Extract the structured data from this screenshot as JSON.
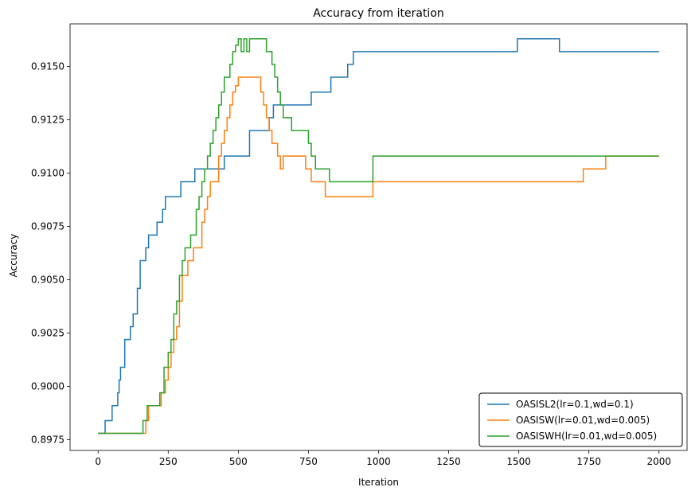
{
  "chart_data": {
    "type": "line",
    "title": "Accuracy from iteration",
    "xlabel": "Iteration",
    "ylabel": "Accuracy",
    "xlim": [
      -100,
      2100
    ],
    "ylim": [
      0.897,
      0.917
    ],
    "xticks": [
      0,
      250,
      500,
      750,
      1000,
      1250,
      1500,
      1750,
      2000
    ],
    "xtick_labels": [
      "0",
      "250",
      "500",
      "750",
      "1000",
      "1250",
      "1500",
      "1750",
      "2000"
    ],
    "yticks": [
      0.8975,
      0.9,
      0.9025,
      0.905,
      0.9075,
      0.91,
      0.9125,
      0.915
    ],
    "ytick_labels": [
      "0.8975",
      "0.9000",
      "0.9025",
      "0.9050",
      "0.9075",
      "0.9100",
      "0.9125",
      "0.9150"
    ],
    "grid": false,
    "legend_position": "bottom-right",
    "step": "post",
    "series": [
      {
        "name": "OASISL2(lr=0.1,wd=0.1)",
        "color": "#1f77b4",
        "x": [
          0,
          25,
          35,
          50,
          70,
          75,
          80,
          95,
          115,
          125,
          140,
          150,
          170,
          180,
          190,
          210,
          230,
          240,
          255,
          295,
          345,
          450,
          540,
          610,
          625,
          760,
          830,
          890,
          910,
          1495,
          1645,
          2000
        ],
        "y": [
          0.8978,
          0.8984,
          0.8984,
          0.8991,
          0.8997,
          0.9003,
          0.9009,
          0.9022,
          0.9028,
          0.9034,
          0.9046,
          0.9059,
          0.9065,
          0.9071,
          0.9071,
          0.9077,
          0.9083,
          0.9089,
          0.9089,
          0.9096,
          0.9102,
          0.9108,
          0.912,
          0.9126,
          0.9132,
          0.9138,
          0.9145,
          0.9151,
          0.9157,
          0.9163,
          0.9157,
          0.9157
        ]
      },
      {
        "name": "OASISW(lr=0.01,wd=0.005)",
        "color": "#ff7f0e",
        "x": [
          0,
          170,
          180,
          225,
          240,
          250,
          260,
          270,
          280,
          290,
          300,
          320,
          340,
          370,
          380,
          390,
          400,
          430,
          440,
          450,
          460,
          470,
          480,
          490,
          500,
          580,
          590,
          600,
          610,
          620,
          640,
          650,
          660,
          670,
          740,
          760,
          770,
          810,
          980,
          1730,
          1810,
          2000
        ],
        "y": [
          0.8978,
          0.8984,
          0.8991,
          0.8997,
          0.9003,
          0.9009,
          0.9016,
          0.9022,
          0.9028,
          0.904,
          0.9052,
          0.9059,
          0.9065,
          0.9077,
          0.9083,
          0.9089,
          0.9096,
          0.9108,
          0.9114,
          0.912,
          0.9126,
          0.9132,
          0.9138,
          0.9141,
          0.9145,
          0.9138,
          0.9132,
          0.9126,
          0.912,
          0.9114,
          0.9108,
          0.9102,
          0.9108,
          0.9108,
          0.9102,
          0.9096,
          0.9096,
          0.9089,
          0.9096,
          0.9102,
          0.9108,
          0.9108
        ]
      },
      {
        "name": "OASISWH(lr=0.01,wd=0.005)",
        "color": "#2ca02c",
        "x": [
          0,
          160,
          175,
          220,
          235,
          250,
          260,
          270,
          280,
          290,
          300,
          310,
          330,
          350,
          360,
          370,
          380,
          390,
          400,
          410,
          420,
          430,
          440,
          450,
          470,
          480,
          490,
          500,
          510,
          520,
          530,
          540,
          560,
          600,
          620,
          630,
          640,
          650,
          660,
          670,
          690,
          750,
          760,
          775,
          825,
          980,
          2000
        ],
        "y": [
          0.8978,
          0.8984,
          0.8991,
          0.8997,
          0.9009,
          0.9016,
          0.9022,
          0.9034,
          0.904,
          0.9052,
          0.9059,
          0.9065,
          0.9071,
          0.9083,
          0.9089,
          0.9096,
          0.9102,
          0.9108,
          0.9114,
          0.912,
          0.9126,
          0.9132,
          0.9138,
          0.9145,
          0.9151,
          0.9157,
          0.916,
          0.9163,
          0.9157,
          0.9163,
          0.9157,
          0.9163,
          0.9163,
          0.9157,
          0.9151,
          0.9145,
          0.9138,
          0.9132,
          0.9126,
          0.9126,
          0.912,
          0.9114,
          0.9108,
          0.9102,
          0.9096,
          0.9108,
          0.9108
        ]
      }
    ]
  }
}
